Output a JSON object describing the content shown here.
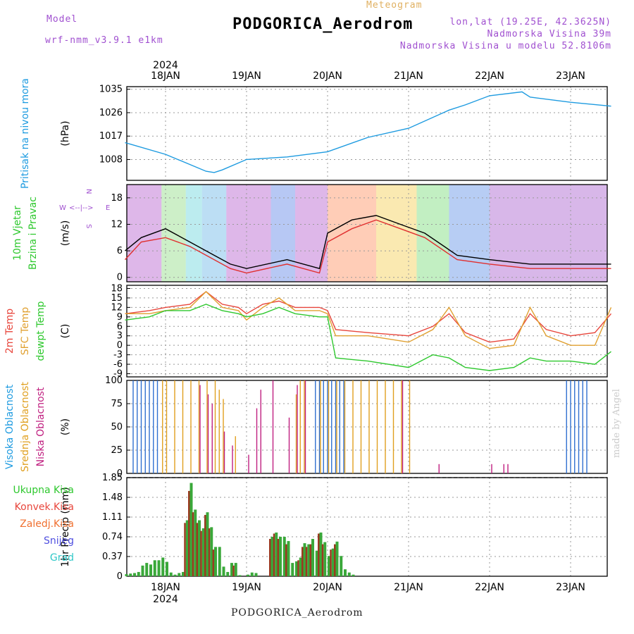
{
  "header": {
    "model_label": "Model",
    "model_name": "wrf-nmm_v3.9.1 e1km",
    "kind": "Meteogram",
    "station": "PODGORICA_Aerodrom",
    "coords": "lon,lat (19.25E, 42.3625N)",
    "elevation": "Nadmorska Visina 39m",
    "model_elevation": "Nadmorska Visina u modelu 52.8106m",
    "footer_station": "PODGORICA_Aerodrom",
    "credit": "made by Angel",
    "year": "2024"
  },
  "colors": {
    "pressure": "#1e9be0",
    "temp2m": "#e8463c",
    "sfc": "#e0a030",
    "dew": "#2ec82e",
    "purple": "#a050d0",
    "precip_green": "#3aa83a",
    "precip_red": "#9a3a20",
    "high_cloud": "#3070d0",
    "mid_cloud": "#e0a020",
    "low_cloud": "#c02080"
  },
  "chart_data": [
    {
      "type": "line",
      "name": "pressure",
      "ylabel": "(hPa)",
      "side_labels": [
        "Pritisak na nivou mora"
      ],
      "yticks": [
        1008,
        1017,
        1026,
        1035
      ],
      "ylim": [
        1000,
        1036
      ],
      "x_days": [
        "18JAN",
        "19JAN",
        "20JAN",
        "21JAN",
        "22JAN",
        "23JAN"
      ],
      "x": [
        -0.5,
        0,
        0.5,
        0.6,
        0.7,
        1.0,
        1.5,
        2.0,
        2.5,
        3.0,
        3.5,
        3.7,
        4.0,
        4.4,
        4.5,
        5.0,
        5.5
      ],
      "series": [
        {
          "values": [
            1014.5,
            1010,
            1003.5,
            1003,
            1004,
            1008,
            1009,
            1011,
            1016.5,
            1020,
            1027,
            1029,
            1032.5,
            1034,
            1032,
            1030,
            1028.5
          ]
        }
      ]
    },
    {
      "type": "line",
      "name": "wind",
      "ylabel": "(m/s)",
      "side_labels": [
        "10m Vjetar",
        "Brzina i Pravac"
      ],
      "compass": [
        "N",
        "E",
        "S",
        "W"
      ],
      "yticks": [
        0,
        6,
        12,
        18
      ],
      "ylim": [
        -1,
        21
      ],
      "x": [
        -0.5,
        -0.3,
        0,
        0.3,
        0.6,
        0.8,
        1.0,
        1.5,
        1.9,
        2.0,
        2.3,
        2.6,
        2.9,
        3.2,
        3.6,
        4.0,
        4.5,
        5.0,
        5.5
      ],
      "series": [
        {
          "values": [
            6,
            9,
            11,
            8,
            5,
            3,
            2,
            4,
            2,
            10,
            13,
            14,
            12,
            10,
            5,
            4,
            3,
            3,
            3
          ]
        },
        {
          "values": [
            4,
            8,
            9,
            7,
            4,
            2,
            1,
            3,
            1,
            8,
            11,
            13,
            11,
            9,
            4,
            3,
            2,
            2,
            2
          ]
        }
      ]
    },
    {
      "type": "line",
      "name": "temperature",
      "ylabel": "(C)",
      "side_labels": [
        "2m Temp",
        "SFC Temp",
        "dewpt Temp"
      ],
      "yticks": [
        -9,
        -6,
        -3,
        0,
        3,
        6,
        9,
        12,
        15,
        18
      ],
      "ylim": [
        -10,
        19
      ],
      "x": [
        -0.5,
        -0.2,
        0,
        0.3,
        0.5,
        0.7,
        0.9,
        1.0,
        1.2,
        1.4,
        1.6,
        1.9,
        2.0,
        2.1,
        2.5,
        3.0,
        3.3,
        3.5,
        3.7,
        4.0,
        4.3,
        4.5,
        4.7,
        5.0,
        5.3,
        5.5
      ],
      "series": [
        {
          "name": "2m Temp",
          "values": [
            10,
            11,
            12,
            13,
            17,
            13,
            12,
            10,
            13,
            14,
            12,
            12,
            11,
            5,
            4,
            3,
            6,
            10,
            4,
            1,
            2,
            10,
            5,
            3,
            4,
            10
          ]
        },
        {
          "name": "SFC Temp",
          "values": [
            10,
            10,
            11,
            12,
            17,
            12,
            11,
            8,
            12,
            15,
            11,
            11,
            10,
            3,
            3,
            1,
            5,
            12,
            3,
            -1,
            0,
            12,
            3,
            0,
            0,
            12
          ]
        },
        {
          "name": "dewpt Temp",
          "values": [
            8,
            9,
            11,
            11,
            13,
            11,
            10,
            9,
            10,
            12,
            10,
            9,
            9,
            -4,
            -5,
            -7,
            -3,
            -4,
            -7,
            -8,
            -7,
            -4,
            -5,
            -5,
            -6,
            -2
          ]
        }
      ]
    },
    {
      "type": "bar",
      "name": "cloud",
      "ylabel": "(%)",
      "side_labels": [
        "Visoka Oblacnost",
        "Srednja Oblacnost",
        "Niska Oblacnost"
      ],
      "yticks": [
        0,
        25,
        50,
        75,
        100
      ],
      "ylim": [
        0,
        100
      ],
      "series": [
        {
          "name": "Visoka Oblacnost",
          "x": [
            -0.4,
            -0.35,
            -0.3,
            -0.25,
            -0.2,
            -0.15,
            -0.1,
            1.85,
            1.9,
            1.95,
            2.0,
            2.05,
            2.1,
            2.15,
            2.2,
            4.95,
            5.0,
            5.05,
            5.1,
            5.15,
            5.2
          ],
          "values": [
            100,
            100,
            100,
            100,
            100,
            100,
            100,
            100,
            100,
            100,
            100,
            100,
            100,
            100,
            100,
            100,
            100,
            100,
            100,
            100,
            100
          ]
        },
        {
          "name": "Srednja Oblacnost",
          "x": [
            -0.05,
            0.0,
            0.1,
            0.2,
            0.3,
            0.4,
            0.5,
            0.6,
            0.65,
            0.7,
            0.85,
            1.6,
            1.65,
            1.7,
            1.9,
            2.0,
            2.1,
            2.2,
            2.3,
            2.4,
            2.5,
            2.6,
            2.7,
            2.8,
            2.9,
            3.0
          ],
          "values": [
            100,
            100,
            100,
            100,
            100,
            100,
            100,
            100,
            90,
            80,
            40,
            85,
            100,
            100,
            100,
            100,
            100,
            100,
            100,
            100,
            100,
            100,
            100,
            100,
            100,
            100
          ]
        },
        {
          "name": "Niska Oblacnost",
          "x": [
            0.4,
            0.5,
            0.55,
            0.7,
            0.8,
            1.0,
            1.1,
            1.15,
            1.3,
            1.5,
            1.6,
            1.7,
            2.9,
            3.35,
            4.0,
            4.15,
            4.2
          ],
          "values": [
            95,
            85,
            75,
            45,
            30,
            20,
            70,
            90,
            100,
            60,
            95,
            100,
            100,
            10,
            10,
            10,
            10
          ]
        }
      ]
    },
    {
      "type": "bar",
      "name": "precipitation",
      "ylabel": "1hr Precip (mm)",
      "side_labels": [
        "Ukupna Kisa",
        "Konvek.Kisa",
        "Zaledj.Kisa",
        "Snijeg",
        "Grad"
      ],
      "yticks": [
        0,
        0.37,
        0.74,
        1.11,
        1.48,
        1.85
      ],
      "ylim": [
        0,
        1.85
      ],
      "series": [
        {
          "name": "Ukupna Kisa",
          "x": [
            -0.5,
            -0.45,
            -0.4,
            -0.35,
            -0.3,
            -0.25,
            -0.2,
            -0.15,
            -0.1,
            -0.05,
            0,
            0.05,
            0.1,
            0.15,
            0.2,
            0.25,
            0.3,
            0.35,
            0.4,
            0.45,
            0.5,
            0.55,
            0.6,
            0.65,
            0.7,
            0.75,
            0.8,
            0.85,
            0.9,
            1.0,
            1.05,
            1.1,
            1.3,
            1.35,
            1.4,
            1.45,
            1.5,
            1.55,
            1.6,
            1.65,
            1.7,
            1.75,
            1.8,
            1.85,
            1.9,
            1.95,
            2.0,
            2.05,
            2.1,
            2.15,
            2.2,
            2.25,
            2.3
          ],
          "values": [
            0.04,
            0.05,
            0.06,
            0.08,
            0.2,
            0.25,
            0.22,
            0.3,
            0.3,
            0.35,
            0.27,
            0.07,
            0.03,
            0.06,
            0.08,
            1.05,
            1.75,
            1.25,
            1.05,
            0.9,
            1.2,
            0.92,
            0.55,
            0.55,
            0.18,
            0.08,
            0.25,
            0.25,
            0.02,
            0.03,
            0.07,
            0.06,
            0.74,
            0.82,
            0.74,
            0.74,
            0.66,
            0.25,
            0.28,
            0.35,
            0.62,
            0.6,
            0.7,
            0.48,
            0.82,
            0.64,
            0.38,
            0.52,
            0.65,
            0.38,
            0.13,
            0.07,
            0.03
          ]
        },
        {
          "name": "Konvek.Kisa",
          "x": [
            0.25,
            0.3,
            0.35,
            0.4,
            0.45,
            0.5,
            0.55,
            0.6,
            0.85,
            1.3,
            1.35,
            1.4,
            1.5,
            1.65,
            1.7,
            1.75,
            1.8,
            1.9,
            1.95,
            2.05,
            2.1
          ],
          "values": [
            1.0,
            1.6,
            1.2,
            1.0,
            0.85,
            1.15,
            0.9,
            0.5,
            0.2,
            0.7,
            0.8,
            0.7,
            0.6,
            0.3,
            0.55,
            0.55,
            0.6,
            0.8,
            0.6,
            0.5,
            0.6
          ]
        }
      ]
    }
  ]
}
